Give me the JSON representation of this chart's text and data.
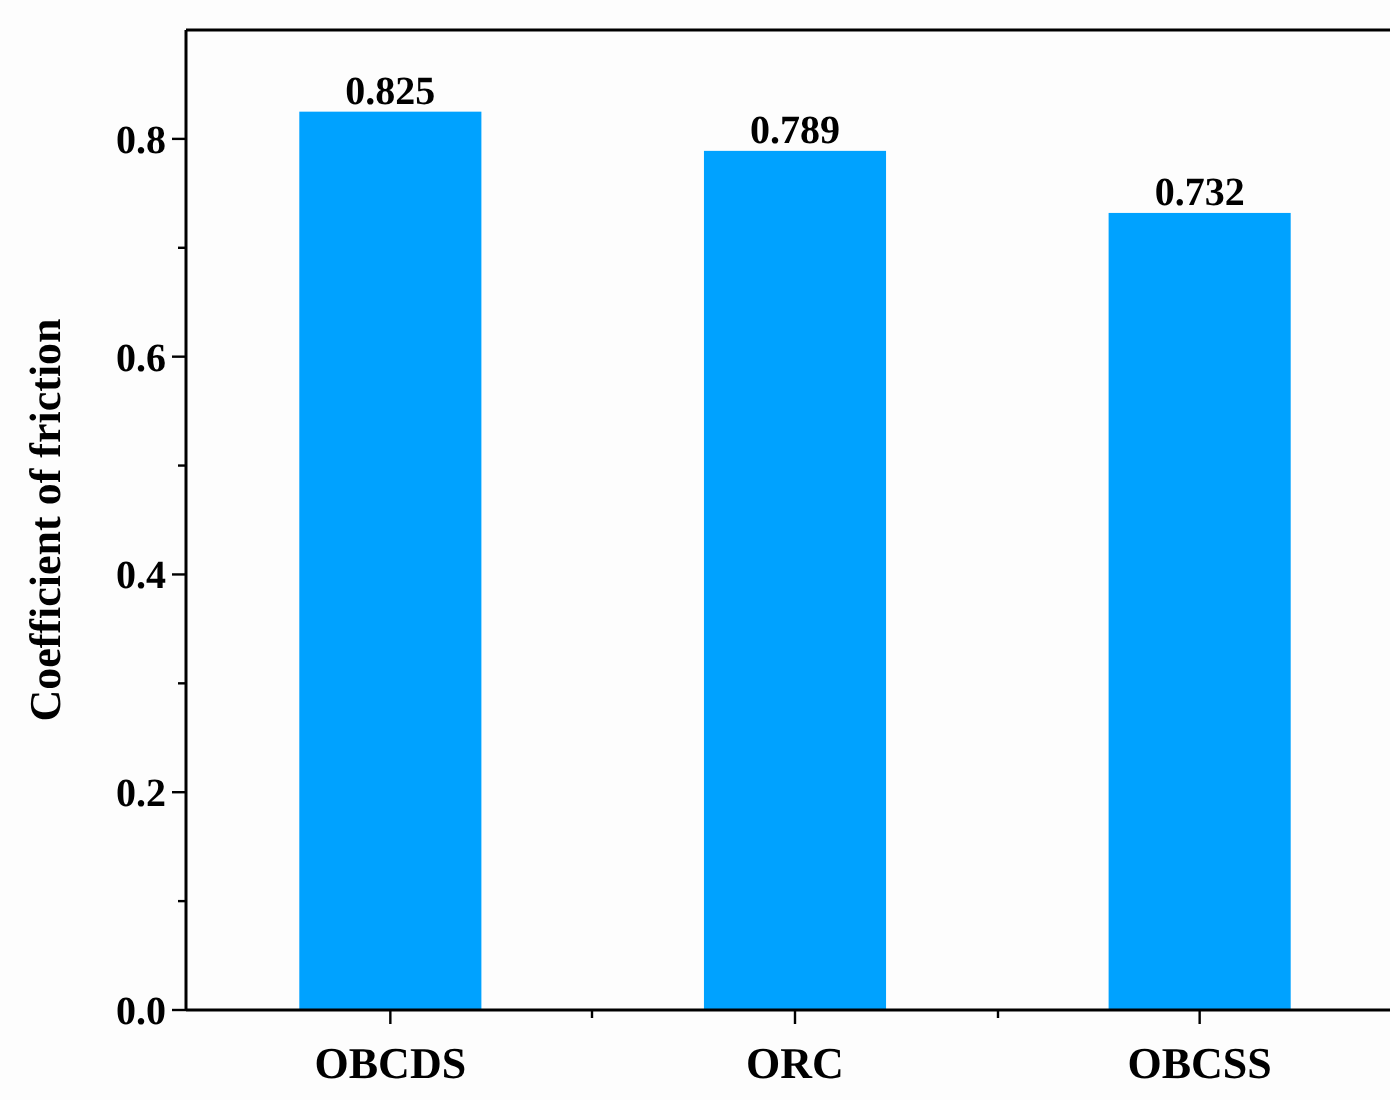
{
  "chart_data": {
    "type": "bar",
    "ylabel": "Coefficient of friction",
    "categories": [
      "OBCDS",
      "ORC",
      "OBCSS"
    ],
    "values": [
      0.825,
      0.789,
      0.732
    ],
    "color": "#00a2ff",
    "data_labels": true,
    "ylim": [
      0,
      0.9
    ],
    "yticks": [
      "0.0",
      {
        "value": 0.1,
        "label": null
      },
      "0.2",
      {
        "value": 0.3,
        "label": null
      },
      "0.4",
      {
        "value": 0.5,
        "label": null
      },
      "0.6",
      {
        "value": 0.7,
        "label": null
      },
      "0.8"
    ],
    "grid": false
  }
}
